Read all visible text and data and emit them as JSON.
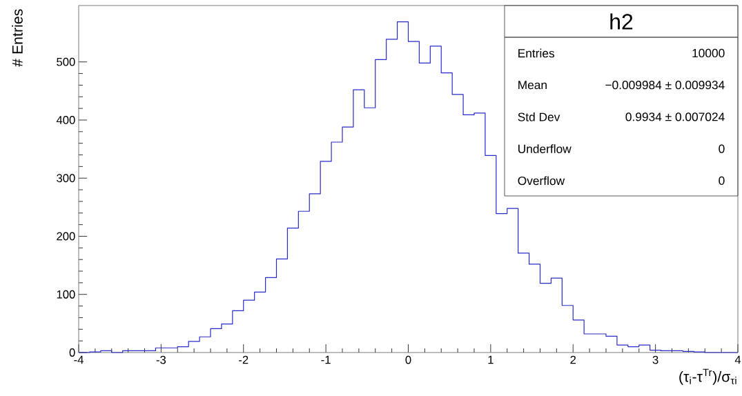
{
  "chart_data": {
    "type": "histogram",
    "xlabel": "(τ$_{i}$-τ$^{Tr}$)/σ$_{τi}$",
    "ylabel": "# Entries",
    "bins": [
      -4.0,
      -3.8667,
      -3.7333,
      -3.6,
      -3.4667,
      -3.3333,
      -3.2,
      -3.0667,
      -2.9333,
      -2.8,
      -2.6667,
      -2.5333,
      -2.4,
      -2.2667,
      -2.1333,
      -2.0,
      -1.8667,
      -1.7333,
      -1.6,
      -1.4667,
      -1.3333,
      -1.2,
      -1.0667,
      -0.9333,
      -0.8,
      -0.6667,
      -0.5333,
      -0.4,
      -0.2667,
      -0.1333,
      0.0,
      0.1333,
      0.2667,
      0.4,
      0.5333,
      0.6667,
      0.8,
      0.9333,
      1.0667,
      1.2,
      1.3333,
      1.4667,
      1.6,
      1.7333,
      1.8667,
      2.0,
      2.1333,
      2.2667,
      2.4,
      2.5333,
      2.6667,
      2.8,
      2.9333,
      3.0667,
      3.2,
      3.3333,
      3.4667,
      3.6,
      3.7333,
      3.8667,
      4.0
    ],
    "values": [
      0,
      1,
      3,
      0,
      3,
      3,
      3,
      8,
      8,
      10,
      19,
      27,
      41,
      49,
      72,
      90,
      104,
      129,
      161,
      214,
      243,
      273,
      329,
      362,
      388,
      452,
      421,
      504,
      539,
      569,
      535,
      498,
      527,
      481,
      444,
      409,
      412,
      339,
      239,
      248,
      171,
      152,
      119,
      128,
      81,
      56,
      32,
      32,
      28,
      13,
      10,
      13,
      4,
      3,
      3,
      2,
      1,
      0,
      0,
      0
    ],
    "color": "#2a2ac8",
    "xlim": [
      -4,
      4
    ],
    "ylim": [
      0,
      597
    ],
    "xticks": [
      -4,
      -3,
      -2,
      -1,
      0,
      1,
      2,
      3,
      4
    ],
    "yticks": [
      0,
      100,
      200,
      300,
      400,
      500
    ],
    "annotations": [
      "h2",
      "Entries",
      "10000",
      "Mean",
      "−0.009984 ± 0.009934",
      "Std Dev",
      "0.9934 ± 0.007024",
      "Underflow",
      "0",
      "Overflow",
      "0"
    ]
  }
}
